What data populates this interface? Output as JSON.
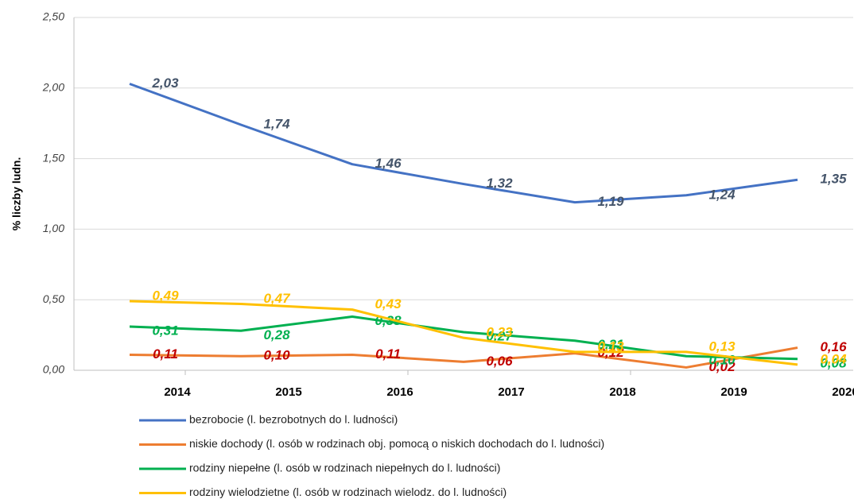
{
  "chart_data": {
    "type": "line",
    "y_axis_label": "% liczby ludn.",
    "categories": [
      "2014",
      "2015",
      "2016",
      "2017",
      "2018",
      "2019",
      "2020"
    ],
    "ylim": [
      0,
      2.5
    ],
    "yticks": [
      {
        "value": 0,
        "label": "0,00"
      },
      {
        "value": 0.5,
        "label": "0,50"
      },
      {
        "value": 1,
        "label": "1,00"
      },
      {
        "value": 1.5,
        "label": "1,50"
      },
      {
        "value": 2,
        "label": "2,00"
      },
      {
        "value": 2.5,
        "label": "2,50"
      }
    ],
    "grid": true,
    "legend": "bottom",
    "series": [
      {
        "name": "bezrobocie (l. bezrobotnych do l. ludności)",
        "color": "#4472c4",
        "label_color": "#44546a",
        "values": [
          2.03,
          1.74,
          1.46,
          1.32,
          1.19,
          1.24,
          1.35
        ],
        "value_labels": [
          "2,03",
          "1,74",
          "1,46",
          "1,32",
          "1,19",
          "1,24",
          "1,35"
        ]
      },
      {
        "name": "niskie dochody (l. osób w rodzinach obj. pomocą o niskich dochodach do l. ludności)",
        "color": "#ed7d31",
        "label_color": "#c00000",
        "values": [
          0.11,
          0.1,
          0.11,
          0.06,
          0.12,
          0.02,
          0.16
        ],
        "value_labels": [
          "0,11",
          "0,10",
          "0,11",
          "0,06",
          "0,12",
          "0,02",
          "0,16"
        ]
      },
      {
        "name": "rodziny niepełne (l. osób w rodzinach niepełnych do l. ludności)",
        "color": "#00b050",
        "label_color": "#00b050",
        "values": [
          0.31,
          0.28,
          0.38,
          0.27,
          0.21,
          0.1,
          0.08
        ],
        "value_labels": [
          "0,31",
          "0,28",
          "0,38",
          "0.27",
          "0,21",
          "0,10",
          "0,08"
        ]
      },
      {
        "name": "rodziny wielodzietne (l. osób w rodzinach wielodz. do l. ludności)",
        "color": "#ffc000",
        "label_color": "#ffc000",
        "values": [
          0.49,
          0.47,
          0.43,
          0.23,
          0.13,
          0.13,
          0.04
        ],
        "value_labels": [
          "0,49",
          "0,47",
          "0,43",
          "0,23",
          "0,13",
          "0,13",
          "0,04"
        ]
      }
    ]
  }
}
